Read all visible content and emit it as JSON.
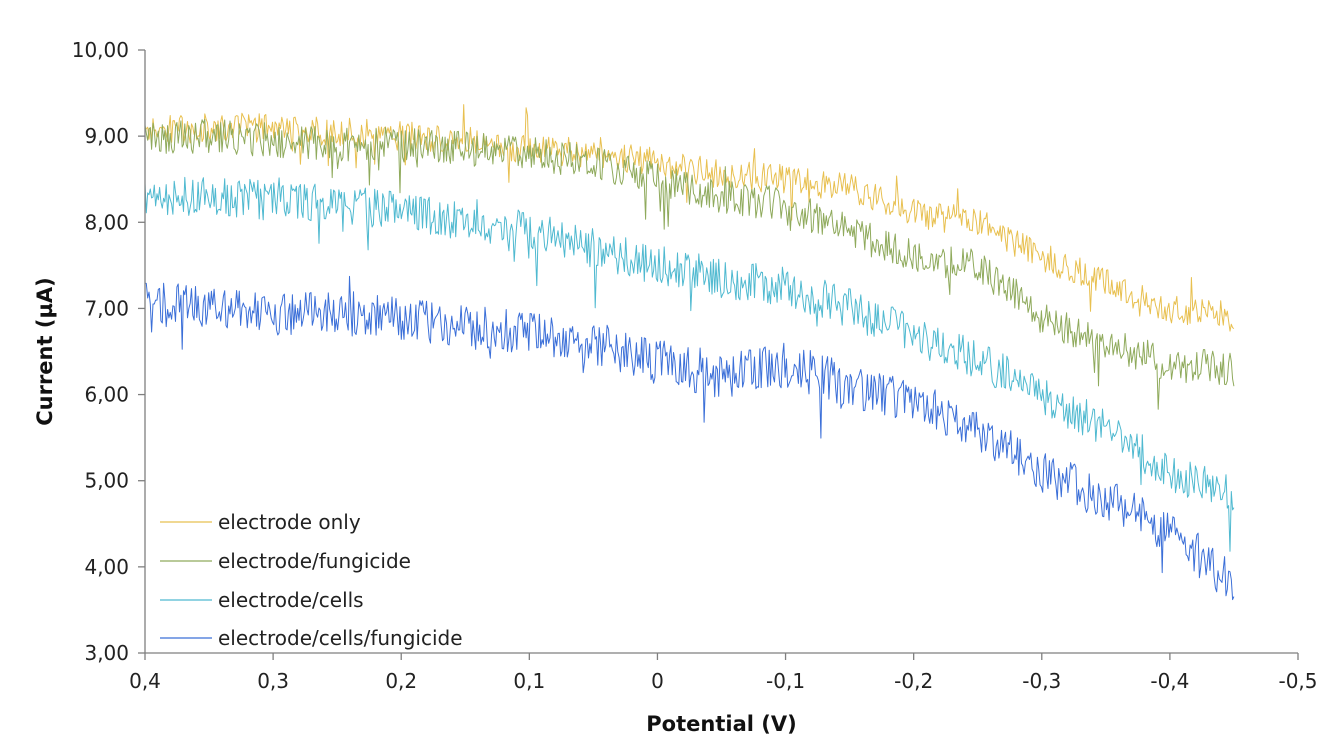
{
  "chart_data": {
    "type": "line",
    "title": "",
    "xlabel": "Potential (V)",
    "ylabel": "Current (µA)",
    "xlim": [
      0.4,
      -0.5
    ],
    "ylim": [
      3.0,
      10.0
    ],
    "x_reversed": true,
    "x_ticks": [
      "0,4",
      "0,3",
      "0,2",
      "0,1",
      "0",
      "-0,1",
      "-0,2",
      "-0,3",
      "-0,4",
      "-0,5"
    ],
    "x_tick_values": [
      0.4,
      0.3,
      0.2,
      0.1,
      0.0,
      -0.1,
      -0.2,
      -0.3,
      -0.4,
      -0.5
    ],
    "y_ticks": [
      "3,00",
      "4,00",
      "5,00",
      "6,00",
      "7,00",
      "8,00",
      "9,00",
      "10,00"
    ],
    "y_tick_values": [
      3,
      4,
      5,
      6,
      7,
      8,
      9,
      10
    ],
    "grid": false,
    "legend_position": "bottom-left",
    "x": [
      0.4,
      0.35,
      0.3,
      0.25,
      0.2,
      0.15,
      0.1,
      0.05,
      0.0,
      -0.05,
      -0.1,
      -0.15,
      -0.2,
      -0.25,
      -0.3,
      -0.35,
      -0.4,
      -0.45
    ],
    "series": [
      {
        "name": "electrode only",
        "color": "#e8c050",
        "values": [
          9.05,
          9.1,
          9.1,
          9.05,
          9.0,
          8.95,
          8.85,
          8.8,
          8.7,
          8.55,
          8.5,
          8.4,
          8.1,
          8.0,
          7.6,
          7.3,
          7.0,
          6.9
        ]
      },
      {
        "name": "electrode/fungicide",
        "color": "#8faa5c",
        "values": [
          8.95,
          9.0,
          8.95,
          8.9,
          8.9,
          8.85,
          8.8,
          8.7,
          8.5,
          8.3,
          8.2,
          7.9,
          7.6,
          7.5,
          6.9,
          6.6,
          6.35,
          6.3
        ]
      },
      {
        "name": "electrode/cells",
        "color": "#4fb9d0",
        "values": [
          8.3,
          8.3,
          8.25,
          8.2,
          8.15,
          8.0,
          7.9,
          7.7,
          7.5,
          7.35,
          7.25,
          7.0,
          6.7,
          6.4,
          6.0,
          5.6,
          5.1,
          4.8
        ]
      },
      {
        "name": "electrode/cells/fungicide",
        "color": "#3b6fd8",
        "values": [
          7.05,
          7.0,
          6.95,
          6.95,
          6.9,
          6.8,
          6.7,
          6.6,
          6.4,
          6.2,
          6.35,
          6.1,
          5.9,
          5.6,
          5.1,
          4.8,
          4.4,
          3.8
        ]
      }
    ]
  }
}
